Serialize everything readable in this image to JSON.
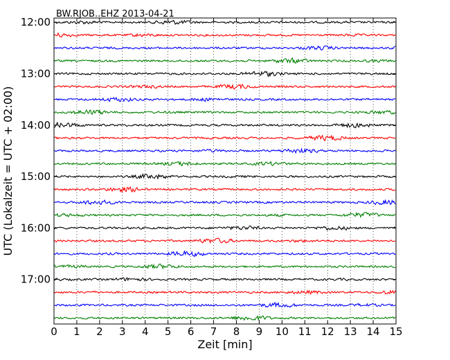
{
  "chart_data": {
    "type": "line",
    "title": "BW.RJOB..EHZ 2013-04-21",
    "xlabel": "Zeit  [min]",
    "ylabel": "UTC (Lokalzeit = UTC + 02:00)",
    "xlim": [
      0,
      15
    ],
    "x_ticks": [
      "0",
      "1",
      "2",
      "3",
      "4",
      "5",
      "6",
      "7",
      "8",
      "9",
      "10",
      "11",
      "12",
      "13",
      "14",
      "15"
    ],
    "y_ticks": [
      "12:00",
      "13:00",
      "14:00",
      "15:00",
      "16:00",
      "17:00"
    ],
    "ylim": [
      "11:55",
      "17:52"
    ],
    "trace_interval_min": 15,
    "trace_start_times": [
      "12:00",
      "12:15",
      "12:30",
      "12:45",
      "13:00",
      "13:15",
      "13:30",
      "13:45",
      "14:00",
      "14:15",
      "14:30",
      "14:45",
      "15:00",
      "15:15",
      "15:30",
      "15:45",
      "16:00",
      "16:15",
      "16:30",
      "16:45",
      "17:00",
      "17:15",
      "17:30",
      "17:45"
    ],
    "color_cycle": [
      "#000000",
      "#ff0000",
      "#0000ff",
      "#007f00"
    ],
    "grid": "vertical dotted"
  }
}
